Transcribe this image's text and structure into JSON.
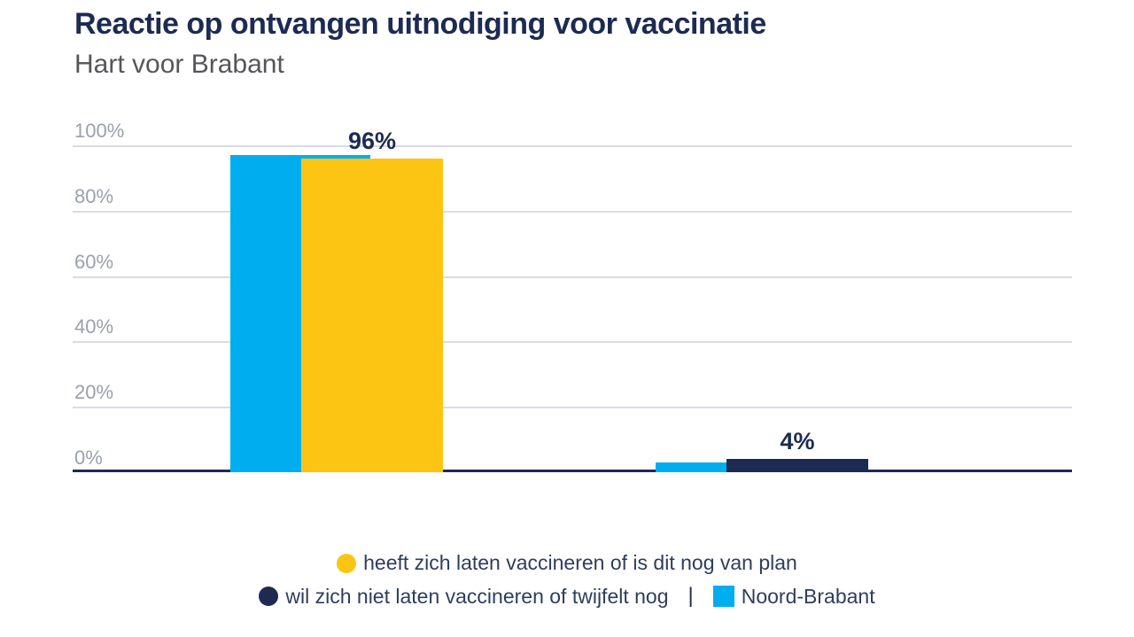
{
  "header": {
    "title": "Reactie op ontvangen uitnodiging voor vaccinatie",
    "subtitle": "Hart voor Brabant"
  },
  "colors": {
    "navy": "#1d2b52",
    "blue": "#00aeef",
    "yellow": "#fdc513",
    "subtitle_gray": "#55565a",
    "axis_label_gray": "#9aa0ad",
    "gridline_gray": "#d9dce5"
  },
  "chart_data": {
    "type": "bar",
    "title": "Reactie op ontvangen uitnodiging voor vaccinatie",
    "subtitle": "Hart voor Brabant",
    "categories": [
      "heeft zich laten vaccineren of is dit nog van plan",
      "wil zich niet laten vaccineren of twijfelt nog"
    ],
    "series": [
      {
        "name": "Noord-Brabant",
        "color_key": "blue",
        "values": [
          97,
          3
        ]
      },
      {
        "name": "Hart voor Brabant",
        "color_keys": [
          "yellow",
          "navy"
        ],
        "values": [
          96,
          4
        ]
      }
    ],
    "value_labels": [
      "96%",
      "4%"
    ],
    "y_ticks": [
      "100%",
      "80%",
      "60%",
      "40%",
      "20%",
      "0%"
    ],
    "ylim": [
      0,
      100
    ],
    "grid": true,
    "legend_position": "bottom"
  },
  "legend": {
    "rows": [
      {
        "items": [
          {
            "marker": "circle",
            "color_key": "yellow",
            "label": "heeft zich laten vaccineren of is dit nog van plan"
          }
        ]
      },
      {
        "items": [
          {
            "marker": "circle",
            "color_key": "navy",
            "label": "wil zich niet laten vaccineren of twijfelt nog"
          },
          {
            "separator": "|"
          },
          {
            "marker": "square",
            "color_key": "blue",
            "label": "Noord-Brabant"
          }
        ]
      }
    ]
  }
}
